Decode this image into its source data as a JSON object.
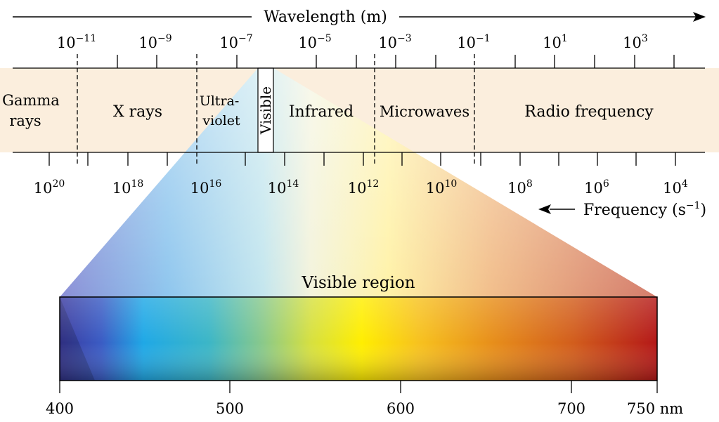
{
  "wavelength_axis": {
    "title": "Wavelength (m)",
    "ticks": [
      {
        "base": "10",
        "exp": "−11"
      },
      {
        "base": "10",
        "exp": "−9"
      },
      {
        "base": "10",
        "exp": "−7"
      },
      {
        "base": "10",
        "exp": "−5"
      },
      {
        "base": "10",
        "exp": "−3"
      },
      {
        "base": "10",
        "exp": "−1"
      },
      {
        "base": "10",
        "exp": "1"
      },
      {
        "base": "10",
        "exp": "3"
      }
    ]
  },
  "frequency_axis": {
    "title_pre": "Frequency (s",
    "title_exp": "−1",
    "title_post": ")",
    "ticks": [
      {
        "base": "10",
        "exp": "20"
      },
      {
        "base": "10",
        "exp": "18"
      },
      {
        "base": "10",
        "exp": "16"
      },
      {
        "base": "10",
        "exp": "14"
      },
      {
        "base": "10",
        "exp": "12"
      },
      {
        "base": "10",
        "exp": "10"
      },
      {
        "base": "10",
        "exp": "8"
      },
      {
        "base": "10",
        "exp": "6"
      },
      {
        "base": "10",
        "exp": "4"
      }
    ]
  },
  "regions": {
    "gamma_line1": "Gamma",
    "gamma_line2": "rays",
    "xrays": "X rays",
    "uv_line1": "Ultra-",
    "uv_line2": "violet",
    "visible": "Visible",
    "infrared": "Infrared",
    "microwaves": "Microwaves",
    "radio": "Radio frequency"
  },
  "visible_region": {
    "title": "Visible region",
    "tick_labels": [
      "400",
      "500",
      "600",
      "700",
      "750 nm"
    ],
    "colors": {
      "band": "#fbeedd",
      "violet": "#3a3aa0",
      "blue": "#1fa8e6",
      "green": "#8ac98a",
      "yellow": "#ffee00",
      "orange": "#e8901a",
      "red": "#b41818"
    }
  }
}
